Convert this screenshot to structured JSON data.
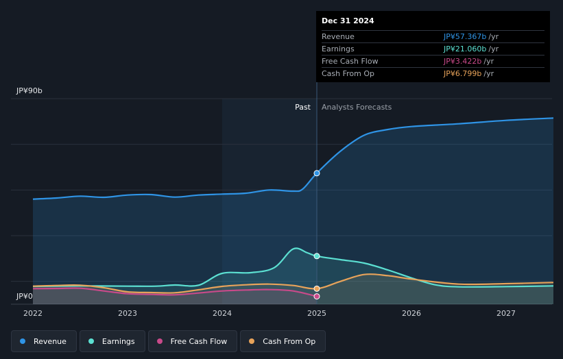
{
  "chart_data": {
    "type": "line",
    "y_max_label": "JP¥90b",
    "y_min_label": "JP¥0",
    "ylim": [
      0,
      90
    ],
    "xlim": [
      2021.9,
      2027.5
    ],
    "x_ticks": [
      {
        "label": "2022",
        "value": 2022
      },
      {
        "label": "2023",
        "value": 2023
      },
      {
        "label": "2024",
        "value": 2024
      },
      {
        "label": "2025",
        "value": 2025
      },
      {
        "label": "2026",
        "value": 2026
      },
      {
        "label": "2027",
        "value": 2027
      }
    ],
    "past_label": "Past",
    "forecast_label": "Analysts Forecasts",
    "divider_x": 2025,
    "shade_start_x": 2024,
    "series": [
      {
        "name": "Revenue",
        "color": "#2f94e6",
        "fill": true,
        "points": [
          [
            2022.0,
            46.0
          ],
          [
            2022.25,
            46.5
          ],
          [
            2022.5,
            47.3
          ],
          [
            2022.75,
            46.8
          ],
          [
            2023.0,
            47.8
          ],
          [
            2023.25,
            48.0
          ],
          [
            2023.5,
            46.9
          ],
          [
            2023.75,
            47.8
          ],
          [
            2024.0,
            48.2
          ],
          [
            2024.25,
            48.6
          ],
          [
            2024.5,
            50.0
          ],
          [
            2024.75,
            49.5
          ],
          [
            2024.85,
            50.4
          ],
          [
            2025.0,
            57.367
          ],
          [
            2025.25,
            67.0
          ],
          [
            2025.5,
            74.0
          ],
          [
            2025.75,
            76.5
          ],
          [
            2026.0,
            77.8
          ],
          [
            2026.5,
            79.0
          ],
          [
            2027.0,
            80.5
          ],
          [
            2027.5,
            81.5
          ]
        ]
      },
      {
        "name": "Earnings",
        "color": "#5ce0d2",
        "fill": true,
        "points": [
          [
            2022.0,
            7.8
          ],
          [
            2022.5,
            8.0
          ],
          [
            2023.0,
            7.9
          ],
          [
            2023.3,
            7.9
          ],
          [
            2023.5,
            8.4
          ],
          [
            2023.75,
            8.3
          ],
          [
            2024.0,
            13.5
          ],
          [
            2024.3,
            13.8
          ],
          [
            2024.55,
            16.0
          ],
          [
            2024.75,
            24.2
          ],
          [
            2024.9,
            22.5
          ],
          [
            2025.0,
            21.06
          ],
          [
            2025.25,
            19.5
          ],
          [
            2025.5,
            18.0
          ],
          [
            2025.75,
            15.0
          ],
          [
            2026.0,
            11.5
          ],
          [
            2026.25,
            8.5
          ],
          [
            2026.5,
            7.6
          ],
          [
            2027.0,
            7.7
          ],
          [
            2027.5,
            8.0
          ]
        ]
      },
      {
        "name": "Free Cash Flow",
        "color": "#c94a8a",
        "fill": true,
        "points": [
          [
            2022.0,
            6.8
          ],
          [
            2022.25,
            6.9
          ],
          [
            2022.5,
            7.0
          ],
          [
            2022.75,
            5.8
          ],
          [
            2023.0,
            4.6
          ],
          [
            2023.25,
            4.3
          ],
          [
            2023.5,
            4.1
          ],
          [
            2023.75,
            4.9
          ],
          [
            2024.0,
            5.8
          ],
          [
            2024.25,
            6.2
          ],
          [
            2024.5,
            6.4
          ],
          [
            2024.75,
            5.8
          ],
          [
            2025.0,
            3.422
          ]
        ]
      },
      {
        "name": "Cash From Op",
        "color": "#e8a35a",
        "fill": true,
        "points": [
          [
            2022.0,
            7.9
          ],
          [
            2022.25,
            8.2
          ],
          [
            2022.5,
            8.3
          ],
          [
            2022.75,
            7.2
          ],
          [
            2023.0,
            5.4
          ],
          [
            2023.25,
            5.1
          ],
          [
            2023.5,
            5.0
          ],
          [
            2023.75,
            6.3
          ],
          [
            2024.0,
            7.8
          ],
          [
            2024.25,
            8.5
          ],
          [
            2024.5,
            8.8
          ],
          [
            2024.75,
            8.2
          ],
          [
            2025.0,
            6.799
          ],
          [
            2025.25,
            10.0
          ],
          [
            2025.5,
            13.0
          ],
          [
            2025.75,
            12.5
          ],
          [
            2026.0,
            11.0
          ],
          [
            2026.5,
            8.8
          ],
          [
            2027.0,
            9.0
          ],
          [
            2027.5,
            9.5
          ]
        ]
      }
    ]
  },
  "tooltip": {
    "date": "Dec 31 2024",
    "unit": "/yr",
    "rows": [
      {
        "name": "Revenue",
        "value": "JP¥57.367b",
        "color": "#2f94e6"
      },
      {
        "name": "Earnings",
        "value": "JP¥21.060b",
        "color": "#5ce0d2"
      },
      {
        "name": "Free Cash Flow",
        "value": "JP¥3.422b",
        "color": "#c94a8a"
      },
      {
        "name": "Cash From Op",
        "value": "JP¥6.799b",
        "color": "#e8a35a"
      }
    ]
  },
  "legend": [
    {
      "label": "Revenue",
      "color": "#2f94e6"
    },
    {
      "label": "Earnings",
      "color": "#5ce0d2"
    },
    {
      "label": "Free Cash Flow",
      "color": "#c94a8a"
    },
    {
      "label": "Cash From Op",
      "color": "#e8a35a"
    }
  ]
}
